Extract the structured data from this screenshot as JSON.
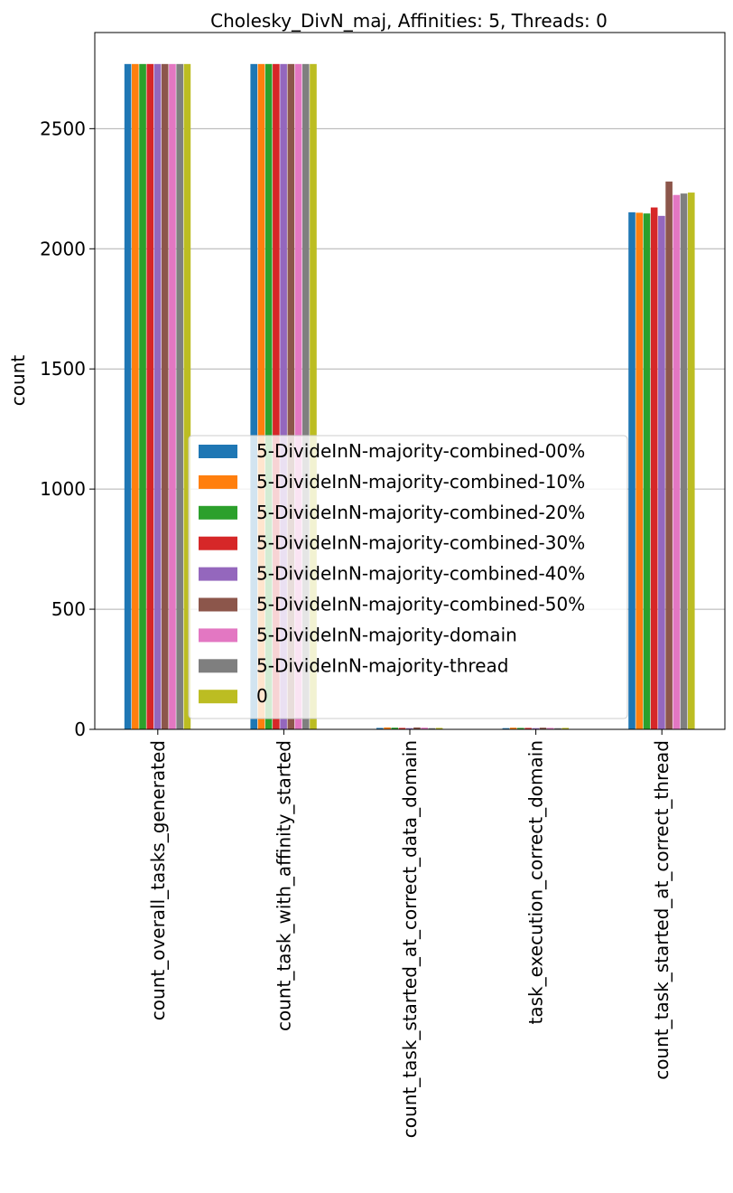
{
  "chart_data": {
    "type": "bar",
    "title": "Cholesky_DivN_maj, Affinities: 5, Threads: 0",
    "xlabel": "",
    "ylabel": "count",
    "ylim": [
      0,
      2900
    ],
    "yticks": [
      0,
      500,
      1000,
      1500,
      2000,
      2500
    ],
    "grid": "y",
    "legend_position": "lower-center",
    "categories": [
      "count_overall_tasks_generated",
      "count_task_with_affinity_started",
      "count_task_started_at_correct_data_domain",
      "task_execution_correct_domain",
      "count_task_started_at_correct_thread"
    ],
    "series": [
      {
        "name": "5-DivideInN-majority-combined-00%",
        "color": "#1f77b4",
        "values": [
          2769,
          2769,
          6,
          5,
          2152
        ]
      },
      {
        "name": "5-DivideInN-majority-combined-10%",
        "color": "#ff7f0e",
        "values": [
          2769,
          2769,
          8,
          7,
          2150
        ]
      },
      {
        "name": "5-DivideInN-majority-combined-20%",
        "color": "#2ca02c",
        "values": [
          2769,
          2769,
          7,
          6,
          2147
        ]
      },
      {
        "name": "5-DivideInN-majority-combined-30%",
        "color": "#d62728",
        "values": [
          2769,
          2769,
          6,
          6,
          2172
        ]
      },
      {
        "name": "5-DivideInN-majority-combined-40%",
        "color": "#9467bd",
        "values": [
          2769,
          2769,
          5,
          5,
          2137
        ]
      },
      {
        "name": "5-DivideInN-majority-combined-50%",
        "color": "#8c564b",
        "values": [
          2769,
          2769,
          8,
          7,
          2280
        ]
      },
      {
        "name": "5-DivideInN-majority-domain",
        "color": "#e377c2",
        "values": [
          2769,
          2769,
          7,
          6,
          2224
        ]
      },
      {
        "name": "5-DivideInN-majority-thread",
        "color": "#7f7f7f",
        "values": [
          2769,
          2769,
          5,
          5,
          2230
        ]
      },
      {
        "name": "0",
        "color": "#bcbd22",
        "values": [
          2769,
          2769,
          6,
          6,
          2234
        ]
      }
    ]
  }
}
